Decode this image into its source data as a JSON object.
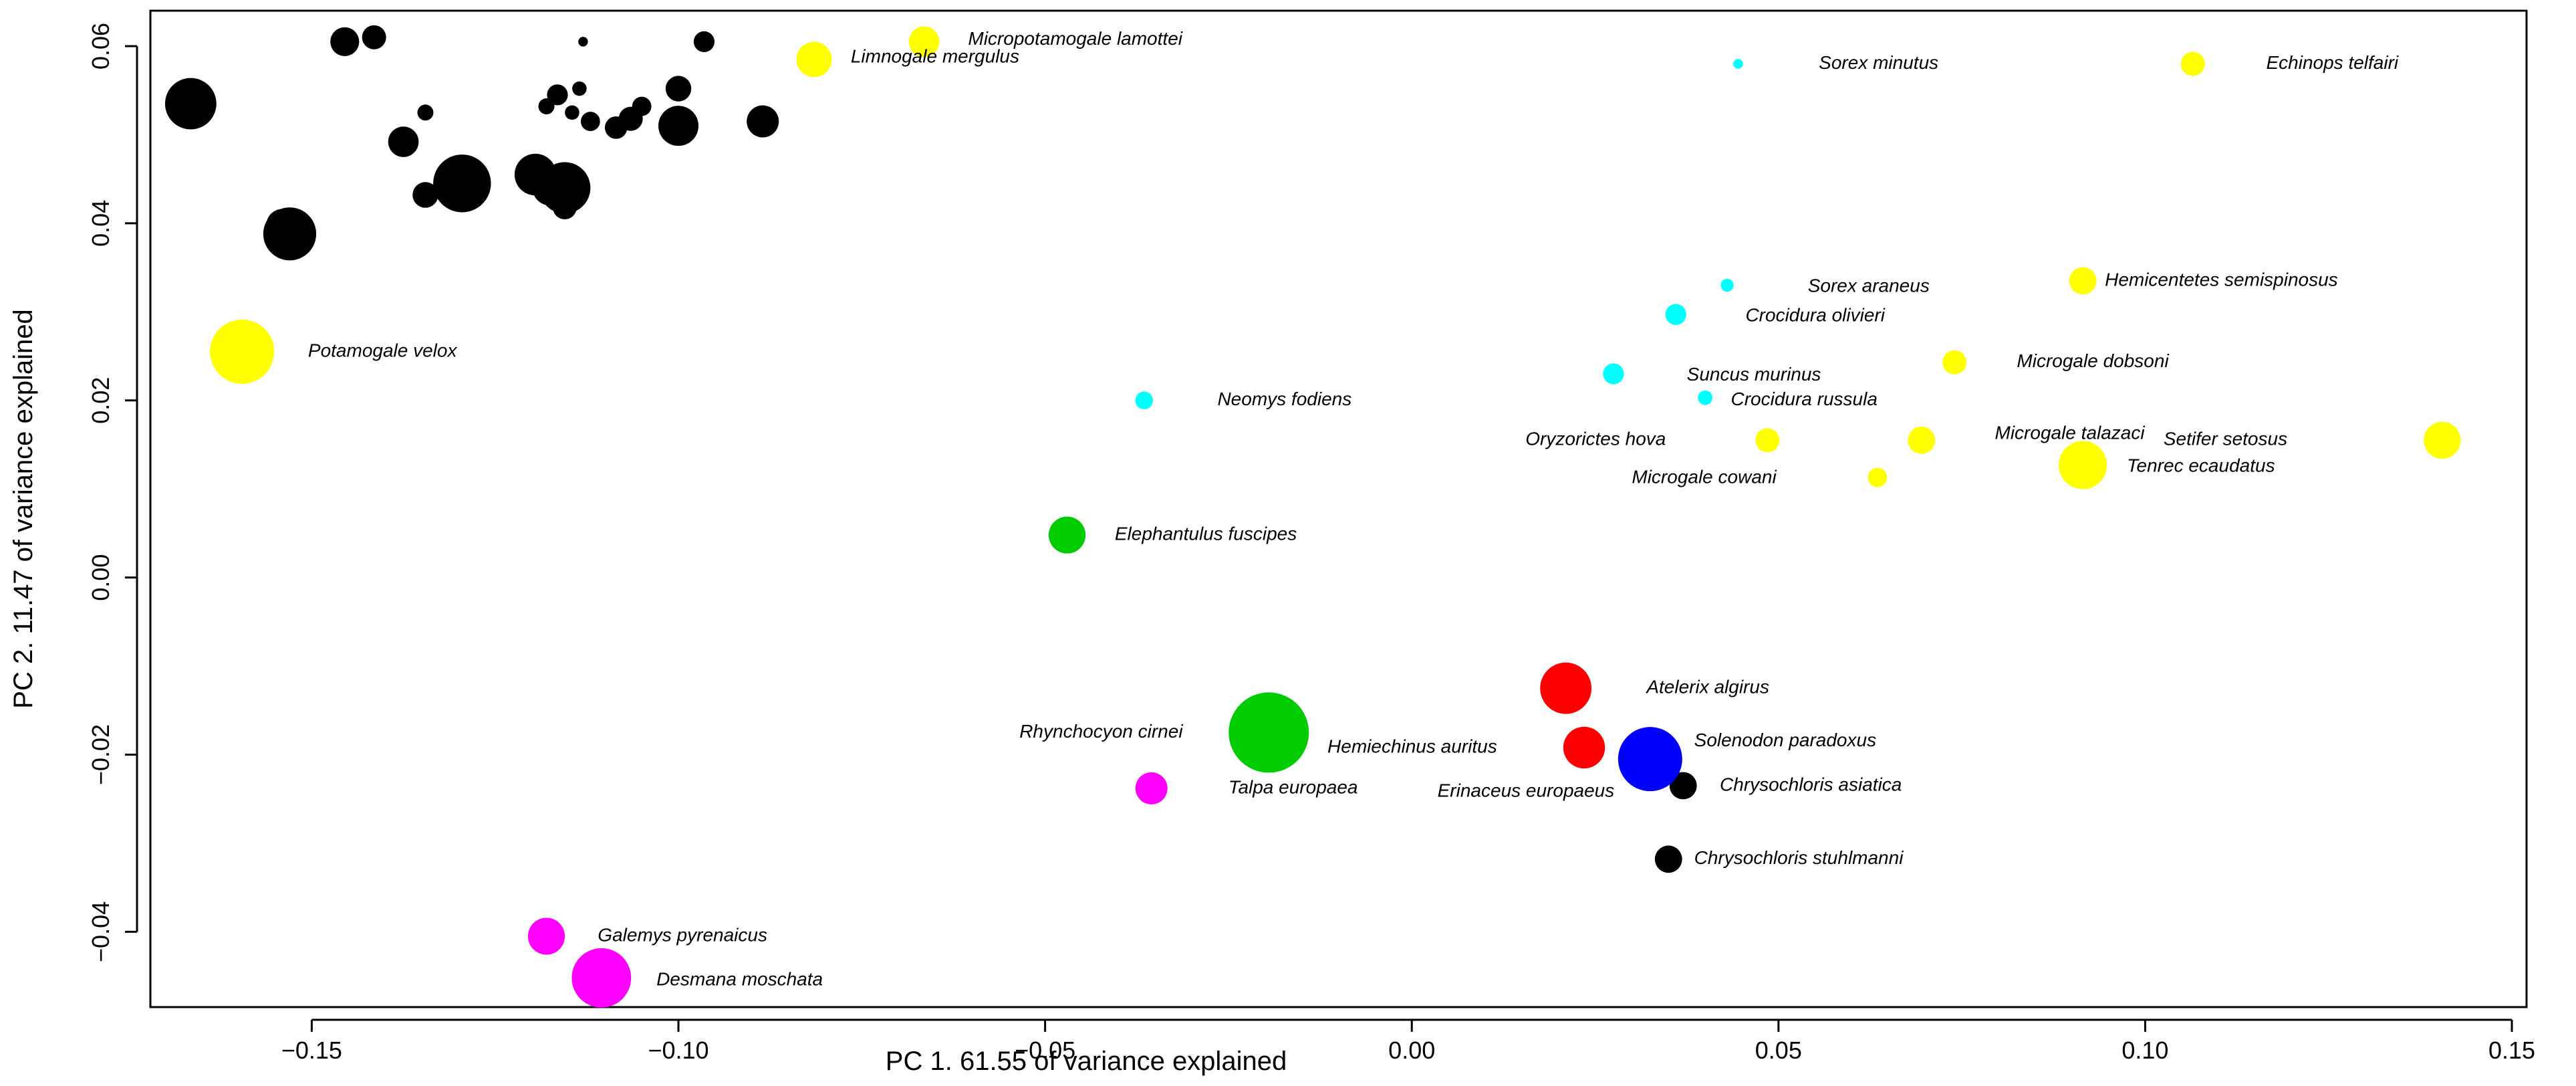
{
  "chart_data": {
    "type": "scatter",
    "title": "",
    "xlabel": "PC 1. 61.55 of variance explained",
    "ylabel": "PC 2. 11.47 of variance explained",
    "xlim": [
      -0.172,
      0.152
    ],
    "ylim": [
      -0.0485,
      0.064
    ],
    "xticks": [
      -0.15,
      -0.1,
      -0.05,
      0.0,
      0.05,
      0.1,
      0.15
    ],
    "xtick_labels": [
      "−0.15",
      "−0.10",
      "−0.05",
      "0.00",
      "0.05",
      "0.10",
      "0.15"
    ],
    "yticks": [
      -0.04,
      -0.02,
      0.0,
      0.02,
      0.04,
      0.06
    ],
    "ytick_labels": [
      "−0.04",
      "−0.02",
      "0.00",
      "0.02",
      "0.04",
      "0.06"
    ],
    "colors": {
      "black": "#000000",
      "yellow": "#ffff00",
      "cyan": "#00ffff",
      "green": "#00cc00",
      "red": "#ff0000",
      "blue": "#0000ff",
      "magenta": "#ff00ff"
    },
    "points": [
      {
        "x": -0.1665,
        "y": 0.0535,
        "size": 3.2,
        "color": "black",
        "label": ""
      },
      {
        "x": -0.1455,
        "y": 0.0605,
        "size": 1.8,
        "color": "black",
        "label": ""
      },
      {
        "x": -0.1415,
        "y": 0.061,
        "size": 1.5,
        "color": "black",
        "label": ""
      },
      {
        "x": -0.154,
        "y": 0.0398,
        "size": 2.0,
        "color": "black",
        "label": ""
      },
      {
        "x": -0.153,
        "y": 0.0388,
        "size": 3.3,
        "color": "black",
        "label": ""
      },
      {
        "x": -0.1375,
        "y": 0.0492,
        "size": 1.9,
        "color": "black",
        "label": ""
      },
      {
        "x": -0.1345,
        "y": 0.0525,
        "size": 1.0,
        "color": "black",
        "label": ""
      },
      {
        "x": -0.1345,
        "y": 0.0432,
        "size": 1.6,
        "color": "black",
        "label": ""
      },
      {
        "x": -0.1295,
        "y": 0.0445,
        "size": 3.6,
        "color": "black",
        "label": ""
      },
      {
        "x": -0.1195,
        "y": 0.0455,
        "size": 2.6,
        "color": "black",
        "label": ""
      },
      {
        "x": -0.1175,
        "y": 0.044,
        "size": 2.2,
        "color": "black",
        "label": ""
      },
      {
        "x": -0.1155,
        "y": 0.044,
        "size": 3.2,
        "color": "black",
        "label": ""
      },
      {
        "x": -0.1155,
        "y": 0.0418,
        "size": 1.5,
        "color": "black",
        "label": ""
      },
      {
        "x": -0.1165,
        "y": 0.0545,
        "size": 1.3,
        "color": "black",
        "label": ""
      },
      {
        "x": -0.1145,
        "y": 0.0525,
        "size": 0.9,
        "color": "black",
        "label": ""
      },
      {
        "x": -0.1135,
        "y": 0.0552,
        "size": 0.9,
        "color": "black",
        "label": ""
      },
      {
        "x": -0.112,
        "y": 0.0515,
        "size": 1.2,
        "color": "black",
        "label": ""
      },
      {
        "x": -0.118,
        "y": 0.0532,
        "size": 1.0,
        "color": "black",
        "label": ""
      },
      {
        "x": -0.113,
        "y": 0.0605,
        "size": 0.6,
        "color": "black",
        "label": ""
      },
      {
        "x": -0.1085,
        "y": 0.0508,
        "size": 1.4,
        "color": "black",
        "label": ""
      },
      {
        "x": -0.1065,
        "y": 0.0518,
        "size": 1.5,
        "color": "black",
        "label": ""
      },
      {
        "x": -0.105,
        "y": 0.0532,
        "size": 1.2,
        "color": "black",
        "label": ""
      },
      {
        "x": -0.1,
        "y": 0.051,
        "size": 2.5,
        "color": "black",
        "label": ""
      },
      {
        "x": -0.1,
        "y": 0.0552,
        "size": 1.6,
        "color": "black",
        "label": ""
      },
      {
        "x": -0.0965,
        "y": 0.0605,
        "size": 1.3,
        "color": "black",
        "label": ""
      },
      {
        "x": -0.0885,
        "y": 0.0515,
        "size": 2.0,
        "color": "black",
        "label": ""
      },
      {
        "x": 0.037,
        "y": -0.0235,
        "size": 1.7,
        "color": "black",
        "label": "Chrysochloris asiatica"
      },
      {
        "x": 0.035,
        "y": -0.0318,
        "size": 1.7,
        "color": "black",
        "label": "Chrysochloris stuhlmanni"
      },
      {
        "x": -0.0815,
        "y": 0.0585,
        "size": 2.2,
        "color": "yellow",
        "label": "Limnogale mergulus"
      },
      {
        "x": -0.0665,
        "y": 0.0605,
        "size": 1.9,
        "color": "yellow",
        "label": "Micropotamogale lamottei"
      },
      {
        "x": -0.1595,
        "y": 0.0255,
        "size": 4.0,
        "color": "yellow",
        "label": "Potamogale velox"
      },
      {
        "x": 0.1065,
        "y": 0.058,
        "size": 1.5,
        "color": "yellow",
        "label": "Echinops telfairi"
      },
      {
        "x": 0.0915,
        "y": 0.0335,
        "size": 1.7,
        "color": "yellow",
        "label": "Hemicentetes semispinosus"
      },
      {
        "x": 0.074,
        "y": 0.0243,
        "size": 1.5,
        "color": "yellow",
        "label": "Microgale dobsoni"
      },
      {
        "x": 0.0485,
        "y": 0.0155,
        "size": 1.5,
        "color": "yellow",
        "label": "Oryzorictes hova"
      },
      {
        "x": 0.0695,
        "y": 0.0155,
        "size": 1.7,
        "color": "yellow",
        "label": "Microgale talazaci"
      },
      {
        "x": 0.0635,
        "y": 0.0113,
        "size": 1.2,
        "color": "yellow",
        "label": "Microgale cowani"
      },
      {
        "x": 0.0915,
        "y": 0.0127,
        "size": 3.0,
        "color": "yellow",
        "label": "Tenrec ecaudatus"
      },
      {
        "x": 0.1405,
        "y": 0.0155,
        "size": 2.3,
        "color": "yellow",
        "label": "Setifer setosus"
      },
      {
        "x": 0.0445,
        "y": 0.058,
        "size": 0.6,
        "color": "cyan",
        "label": "Sorex minutus"
      },
      {
        "x": 0.043,
        "y": 0.033,
        "size": 0.8,
        "color": "cyan",
        "label": "Sorex araneus"
      },
      {
        "x": 0.036,
        "y": 0.0297,
        "size": 1.3,
        "color": "cyan",
        "label": "Crocidura olivieri"
      },
      {
        "x": 0.0275,
        "y": 0.023,
        "size": 1.3,
        "color": "cyan",
        "label": "Suncus murinus"
      },
      {
        "x": 0.04,
        "y": 0.0203,
        "size": 0.9,
        "color": "cyan",
        "label": "Crocidura russula"
      },
      {
        "x": -0.0365,
        "y": 0.02,
        "size": 1.1,
        "color": "cyan",
        "label": "Neomys fodiens"
      },
      {
        "x": -0.047,
        "y": 0.0048,
        "size": 2.3,
        "color": "green",
        "label": "Elephantulus fuscipes"
      },
      {
        "x": -0.0195,
        "y": -0.0175,
        "size": 5.0,
        "color": "green",
        "label": "Rhynchocyon cirnei"
      },
      {
        "x": 0.021,
        "y": -0.0125,
        "size": 3.2,
        "color": "red",
        "label": "Atelerix algirus"
      },
      {
        "x": 0.0235,
        "y": -0.0192,
        "size": 2.6,
        "color": "red",
        "label": "Hemiechinus auritus"
      },
      {
        "x": 0.0315,
        "y": -0.0218,
        "size": 2.2,
        "color": "red",
        "label": "Erinaceus europaeus"
      },
      {
        "x": 0.0325,
        "y": -0.0205,
        "size": 4.0,
        "color": "blue",
        "label": "Solenodon paradoxus"
      },
      {
        "x": -0.0355,
        "y": -0.0238,
        "size": 2.0,
        "color": "magenta",
        "label": "Talpa europaea"
      },
      {
        "x": -0.118,
        "y": -0.0405,
        "size": 2.3,
        "color": "magenta",
        "label": "Galemys pyrenaicus"
      },
      {
        "x": -0.1105,
        "y": -0.0452,
        "size": 3.7,
        "color": "magenta",
        "label": "Desmana moschata"
      }
    ],
    "labels": [
      {
        "text": "Micropotamogale lamottei",
        "x": -0.0605,
        "y": 0.0607
      },
      {
        "text": "Limnogale mergulus",
        "x": -0.0765,
        "y": 0.0587
      },
      {
        "text": "Potamogale velox",
        "x": -0.1505,
        "y": 0.0255
      },
      {
        "text": "Sorex minutus",
        "x": 0.0555,
        "y": 0.058
      },
      {
        "text": "Echinops telfairi",
        "x": 0.1165,
        "y": 0.058
      },
      {
        "text": "Sorex araneus",
        "x": 0.054,
        "y": 0.0328
      },
      {
        "text": "Hemicentetes semispinosus",
        "x": 0.0945,
        "y": 0.0335
      },
      {
        "text": "Crocidura olivieri",
        "x": 0.0455,
        "y": 0.0295
      },
      {
        "text": "Microgale dobsoni",
        "x": 0.0825,
        "y": 0.0243
      },
      {
        "text": "Suncus murinus",
        "x": 0.0375,
        "y": 0.0228
      },
      {
        "text": "Crocidura russula",
        "x": 0.0435,
        "y": 0.02
      },
      {
        "text": "Neomys fodiens",
        "x": -0.0265,
        "y": 0.02
      },
      {
        "text": "Oryzorictes hova",
        "x": 0.0155,
        "y": 0.0155
      },
      {
        "text": "Microgale talazaci",
        "x": 0.0795,
        "y": 0.0162
      },
      {
        "text": "Setifer setosus",
        "x": 0.1025,
        "y": 0.0155
      },
      {
        "text": "Tenrec ecaudatus",
        "x": 0.0975,
        "y": 0.0125
      },
      {
        "text": "Microgale cowani",
        "x": 0.03,
        "y": 0.0112
      },
      {
        "text": "Elephantulus fuscipes",
        "x": -0.0405,
        "y": 0.0048
      },
      {
        "text": "Atelerix algirus",
        "x": 0.032,
        "y": -0.0125
      },
      {
        "text": "Rhynchocyon cirnei",
        "x": -0.0535,
        "y": -0.0175
      },
      {
        "text": "Solenodon paradoxus",
        "x": 0.0385,
        "y": -0.0185
      },
      {
        "text": "Hemiechinus auritus",
        "x": -0.0115,
        "y": -0.0192
      },
      {
        "text": "Erinaceus europaeus",
        "x": 0.0035,
        "y": -0.0242
      },
      {
        "text": "Chrysochloris asiatica",
        "x": 0.042,
        "y": -0.0235
      },
      {
        "text": "Talpa europaea",
        "x": -0.025,
        "y": -0.0238
      },
      {
        "text": "Chrysochloris stuhlmanni",
        "x": 0.0385,
        "y": -0.0318
      },
      {
        "text": "Galemys pyrenaicus",
        "x": -0.111,
        "y": -0.0405
      },
      {
        "text": "Desmana moschata",
        "x": -0.103,
        "y": -0.0455
      }
    ]
  }
}
